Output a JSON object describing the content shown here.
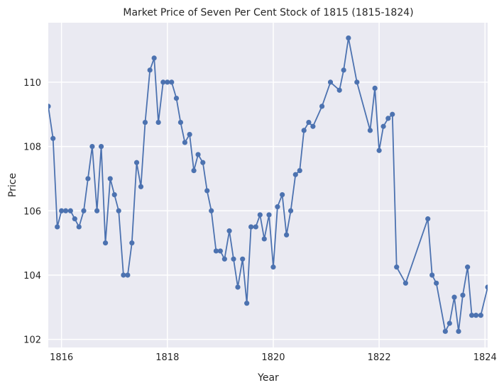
{
  "chart_data": {
    "type": "line",
    "title": "Market Price of Seven Per Cent Stock of 1815 (1815-1824)",
    "xlabel": "Year",
    "ylabel": "Price",
    "xlim": [
      1815.75,
      1824.05
    ],
    "ylim": [
      101.75,
      111.85
    ],
    "x_ticks": [
      1816,
      1818,
      1820,
      1822,
      1824
    ],
    "y_ticks": [
      102,
      104,
      106,
      108,
      110
    ],
    "grid": true,
    "series_color": "#4c72b0",
    "background_color": "#eaeaf2",
    "series": [
      {
        "x": [
          1815.75,
          1815.84,
          1815.92,
          1816.0,
          1816.08,
          1816.17,
          1816.25,
          1816.33,
          1816.42,
          1816.5,
          1816.58,
          1816.67,
          1816.75,
          1816.83,
          1816.92,
          1817.0,
          1817.08,
          1817.17,
          1817.25,
          1817.33,
          1817.42,
          1817.5,
          1817.58,
          1817.67,
          1817.75,
          1817.83,
          1817.92,
          1818.0,
          1818.08,
          1818.17,
          1818.25,
          1818.33,
          1818.42,
          1818.5,
          1818.58,
          1818.67,
          1818.75,
          1818.83,
          1818.92,
          1819.0,
          1819.08,
          1819.17,
          1819.25,
          1819.33,
          1819.42,
          1819.5,
          1819.58,
          1819.67,
          1819.75,
          1819.83,
          1819.92,
          1820.0,
          1820.08,
          1820.17,
          1820.25,
          1820.33,
          1820.42,
          1820.5,
          1820.58,
          1820.67,
          1820.75,
          1820.92,
          1821.08,
          1821.25,
          1821.33,
          1821.42,
          1821.58,
          1821.83,
          1821.92,
          1822.0,
          1822.08,
          1822.17,
          1822.25,
          1822.33,
          1822.5,
          1822.92,
          1823.0,
          1823.08,
          1823.25,
          1823.33,
          1823.42,
          1823.5,
          1823.58,
          1823.67,
          1823.75,
          1823.83,
          1823.92,
          1824.05
        ],
        "y": [
          109.25,
          108.25,
          105.5,
          106.0,
          106.0,
          106.0,
          105.75,
          105.5,
          106.0,
          107.0,
          108.0,
          106.0,
          108.0,
          105.0,
          107.0,
          106.5,
          106.0,
          104.0,
          104.0,
          105.0,
          107.5,
          106.75,
          108.75,
          110.375,
          110.75,
          108.75,
          110.0,
          110.0,
          110.0,
          109.5,
          108.75,
          108.125,
          108.375,
          107.25,
          107.75,
          107.5,
          106.625,
          106.0,
          104.75,
          104.75,
          104.5,
          105.375,
          104.5,
          103.625,
          104.5,
          103.125,
          105.5,
          105.5,
          105.875,
          105.125,
          105.875,
          104.25,
          106.125,
          106.5,
          105.25,
          106.0,
          107.125,
          107.25,
          108.5,
          108.75,
          108.625,
          109.25,
          110.0,
          109.75,
          110.375,
          111.375,
          110.0,
          108.5,
          109.8125,
          107.875,
          108.625,
          108.875,
          109.0,
          104.25,
          103.75,
          105.75,
          104.0,
          103.75,
          102.25,
          102.5,
          103.3125,
          102.25,
          103.375,
          104.25,
          102.75,
          102.75,
          102.75,
          103.625
        ]
      }
    ]
  }
}
